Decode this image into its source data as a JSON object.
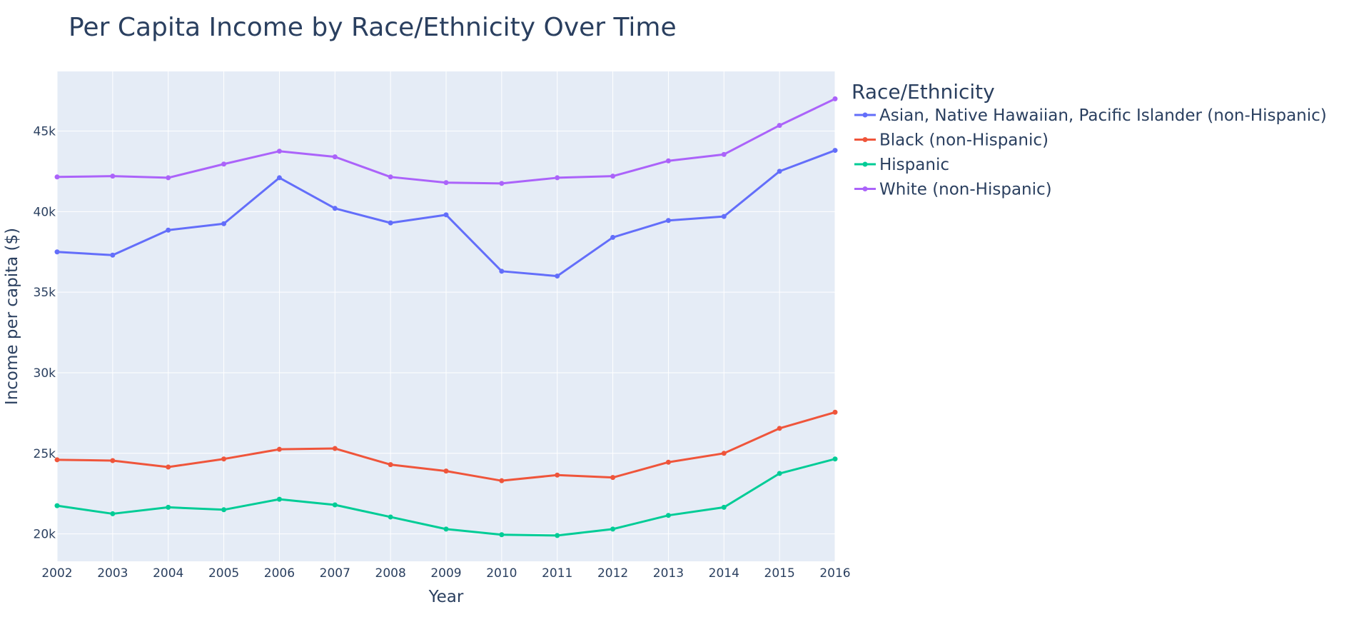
{
  "chart_data": {
    "type": "line",
    "title": "Per Capita Income by Race/Ethnicity Over Time",
    "xlabel": "Year",
    "ylabel": "Income per capita ($)",
    "x": [
      2002,
      2003,
      2004,
      2005,
      2006,
      2007,
      2008,
      2009,
      2010,
      2011,
      2012,
      2013,
      2014,
      2015,
      2016
    ],
    "xlim": [
      2002,
      2016
    ],
    "ylim": [
      18300,
      48700
    ],
    "y_ticks": [
      20000,
      25000,
      30000,
      35000,
      40000,
      45000
    ],
    "y_tick_labels": [
      "20k",
      "25k",
      "30k",
      "35k",
      "40k",
      "45k"
    ],
    "x_tick_labels": [
      "2002",
      "2003",
      "2004",
      "2005",
      "2006",
      "2007",
      "2008",
      "2009",
      "2010",
      "2011",
      "2012",
      "2013",
      "2014",
      "2015",
      "2016"
    ],
    "grid": true,
    "legend_title": "Race/Ethnicity",
    "legend_position": "right",
    "series": [
      {
        "name": "Asian, Native Hawaiian, Pacific Islander (non-Hispanic)",
        "color": "#636efa",
        "values": [
          37500,
          37300,
          38850,
          39250,
          42100,
          40200,
          39300,
          39800,
          36300,
          36000,
          38400,
          39450,
          39700,
          42500,
          43800
        ]
      },
      {
        "name": "Black (non-Hispanic)",
        "color": "#ef553b",
        "values": [
          24600,
          24550,
          24150,
          24650,
          25250,
          25300,
          24300,
          23900,
          23300,
          23650,
          23500,
          24450,
          25000,
          26550,
          27550
        ]
      },
      {
        "name": "Hispanic",
        "color": "#00cc96",
        "values": [
          21750,
          21250,
          21650,
          21500,
          22150,
          21800,
          21050,
          20300,
          19950,
          19900,
          20300,
          21150,
          21650,
          23750,
          24650
        ]
      },
      {
        "name": "White (non-Hispanic)",
        "color": "#ab63fa",
        "values": [
          42150,
          42200,
          42100,
          42950,
          43750,
          43400,
          42150,
          41800,
          41750,
          42100,
          42200,
          43150,
          43550,
          45350,
          47000
        ]
      }
    ]
  }
}
